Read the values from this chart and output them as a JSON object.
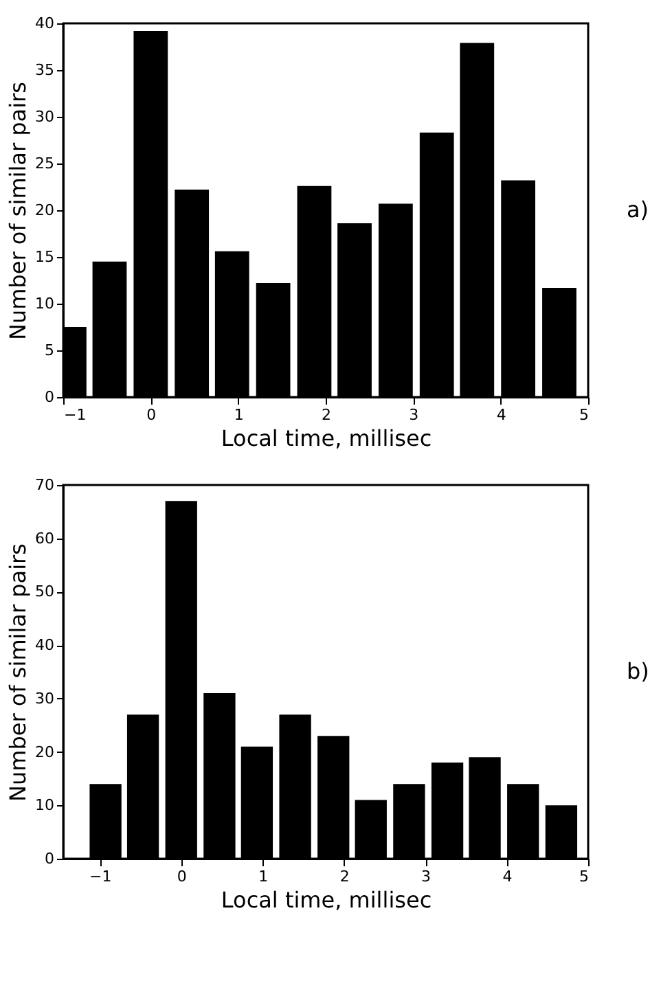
{
  "chart_data": [
    {
      "type": "bar",
      "x": [
        -0.93,
        -0.47,
        0,
        0.47,
        0.93,
        1.4,
        1.87,
        2.33,
        2.8,
        3.27,
        3.73,
        4.2,
        4.67
      ],
      "values": [
        7.5,
        14.5,
        39.2,
        22.2,
        15.6,
        12.2,
        22.6,
        18.6,
        20.7,
        28.3,
        37.9,
        23.2,
        11.7
      ],
      "color": "#000000",
      "xlabel": "Local time, millisec",
      "ylabel": "Number of similar pairs",
      "xlim": [
        -1,
        5
      ],
      "xticks": [
        -1,
        0,
        1,
        2,
        3,
        4,
        5
      ],
      "ylim": [
        0,
        40
      ],
      "yticks": [
        0,
        5,
        10,
        15,
        20,
        25,
        30,
        35,
        40
      ],
      "grid": false,
      "annotations": [
        "a)"
      ]
    },
    {
      "type": "bar",
      "x": [
        -0.93,
        -0.47,
        0,
        0.47,
        0.93,
        1.4,
        1.87,
        2.33,
        2.8,
        3.27,
        3.73,
        4.2,
        4.67
      ],
      "values": [
        14,
        27,
        67,
        31,
        21,
        27,
        23,
        11,
        14,
        18,
        19,
        14,
        10
      ],
      "color": "#000000",
      "xlabel": "Local time, millisec",
      "ylabel": "Number of similar pairs",
      "xlim": [
        -1.45,
        5
      ],
      "xticks": [
        -1,
        0,
        1,
        2,
        3,
        4,
        5
      ],
      "ylim": [
        0,
        70
      ],
      "yticks": [
        0,
        10,
        20,
        30,
        40,
        50,
        60,
        70
      ],
      "grid": false,
      "annotations": [
        "b)"
      ]
    }
  ]
}
